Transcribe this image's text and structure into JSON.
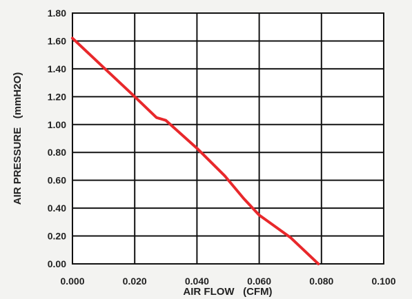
{
  "chart_data": {
    "type": "line",
    "xlabel": "AIR FLOW   (CFM)",
    "ylabel": "AIR PRESSURE   (mmH2O)",
    "xlim": [
      0,
      0.1
    ],
    "ylim": [
      0,
      1.8
    ],
    "x_ticks": [
      "0.000",
      "0.020",
      "0.040",
      "0.060",
      "0.080",
      "0.100"
    ],
    "y_ticks": [
      "0.00",
      "0.20",
      "0.40",
      "0.60",
      "0.80",
      "1.00",
      "1.20",
      "1.40",
      "1.60",
      "1.80"
    ],
    "grid": true,
    "series": [
      {
        "color": "#e8282b",
        "x": [
          0.0,
          0.01,
          0.02,
          0.027,
          0.03,
          0.04,
          0.049,
          0.055,
          0.06,
          0.07,
          0.079
        ],
        "y": [
          1.62,
          1.41,
          1.2,
          1.05,
          1.03,
          0.83,
          0.63,
          0.47,
          0.35,
          0.19,
          0.0
        ]
      }
    ]
  }
}
